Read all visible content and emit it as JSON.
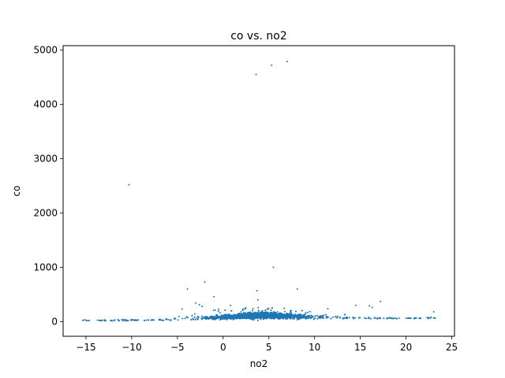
{
  "chart_data": {
    "type": "scatter",
    "title": "co vs. no2",
    "xlabel": "no2",
    "ylabel": "co",
    "xlim": [
      -17.5,
      25.3
    ],
    "ylim": [
      -270,
      5080
    ],
    "xticks": [
      -15,
      -10,
      -5,
      0,
      5,
      10,
      15,
      20,
      25
    ],
    "yticks": [
      0,
      1000,
      2000,
      3000,
      4000,
      5000
    ],
    "grid": false,
    "point_color": "#1f77b4",
    "series": [
      {
        "name": "co",
        "x_range": [
          -15.5,
          23.5
        ],
        "y_typical": [
          0,
          200
        ],
        "outliers": [
          {
            "x": 7.0,
            "y": 4790
          },
          {
            "x": 5.3,
            "y": 4720
          },
          {
            "x": 3.6,
            "y": 4550
          },
          {
            "x": -10.3,
            "y": 2520
          },
          {
            "x": 5.5,
            "y": 1000
          },
          {
            "x": -2.0,
            "y": 730
          },
          {
            "x": -3.9,
            "y": 600
          },
          {
            "x": 8.1,
            "y": 600
          },
          {
            "x": 3.7,
            "y": 570
          },
          {
            "x": -1.0,
            "y": 460
          },
          {
            "x": 3.8,
            "y": 400
          },
          {
            "x": -3.0,
            "y": 340
          },
          {
            "x": -2.6,
            "y": 310
          },
          {
            "x": -2.3,
            "y": 280
          },
          {
            "x": 0.8,
            "y": 300
          },
          {
            "x": 16.0,
            "y": 290
          },
          {
            "x": 14.5,
            "y": 300
          },
          {
            "x": 17.2,
            "y": 370
          },
          {
            "x": 16.3,
            "y": 260
          },
          {
            "x": -4.5,
            "y": 230
          }
        ]
      }
    ]
  }
}
